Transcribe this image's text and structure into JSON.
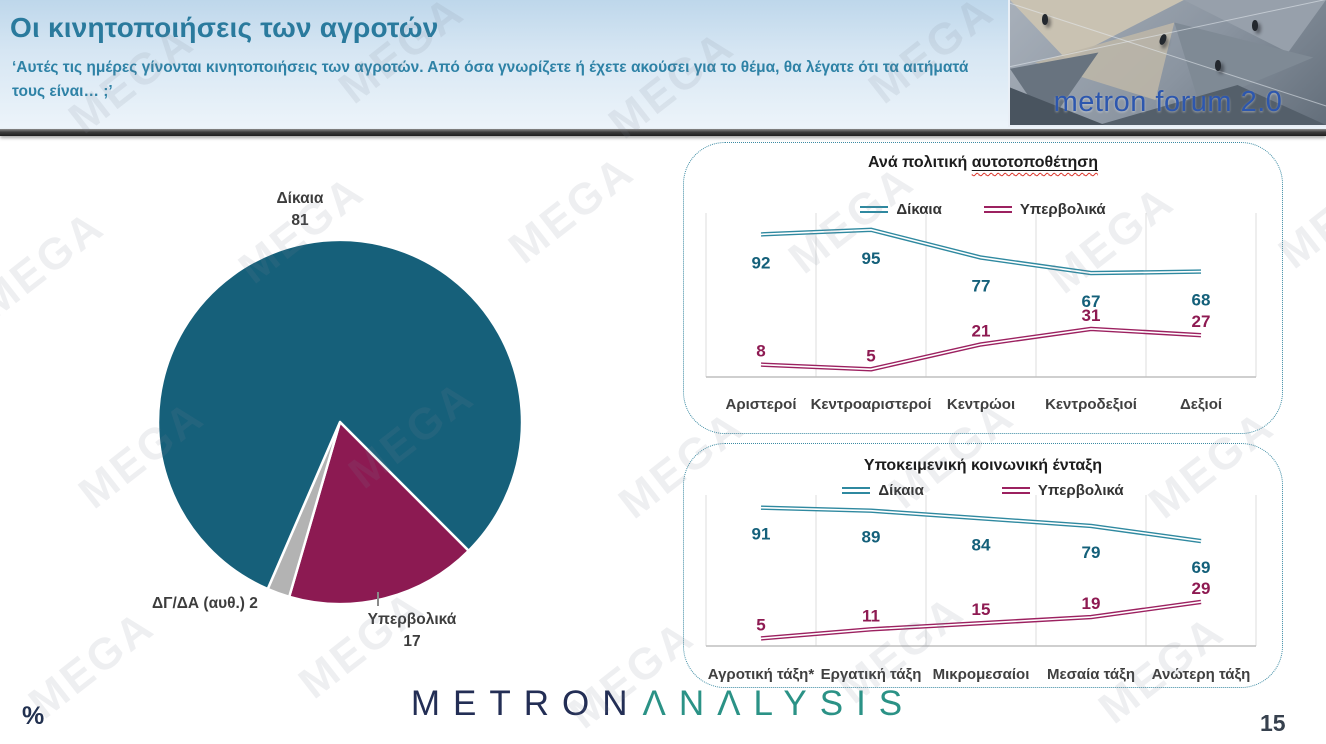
{
  "watermark": {
    "text": "MEGA"
  },
  "header": {
    "title": "Οι κινητοποιήσεις των αγροτών",
    "subtitle": "‘Αυτές τις ημέρες γίνονται κινητοποιήσεις των αγροτών. Από όσα γνωρίζετε ή έχετε ακούσει για το θέμα, θα λέγατε ότι τα αιτήματά τους είναι… ;’"
  },
  "brand_image": {
    "caption": "metron forum 2.0"
  },
  "panels": [
    {
      "title_prefix": "Ανά πολιτική ",
      "title_underlined": "αυτοτοποθέτηση"
    },
    {
      "title": "Υποκειμενική κοινωνική ένταξη"
    }
  ],
  "chart_data": [
    {
      "type": "pie",
      "labels": [
        "Δίκαια",
        "Υπερβολικά",
        "ΔΓ/ΔΑ (αυθ.)"
      ],
      "values": [
        81,
        17,
        2
      ],
      "colors": [
        "#16607a",
        "#8c1a52",
        "#b3b3b3"
      ],
      "start_angle_deg": 135,
      "notes": "gray ΔΓ/ΔΑ sliver sits between the Υπερβολικά wedge and Δίκαια at bottom-left"
    },
    {
      "type": "line",
      "title": "Ανά πολιτική αυτοτοποθέτηση",
      "categories": [
        "Αριστεροί",
        "Κεντροαριστεροί",
        "Κεντρώοι",
        "Κεντροδεξιοί",
        "Δεξιοί"
      ],
      "series": [
        {
          "name": "Δίκαια",
          "values": [
            92,
            95,
            77,
            67,
            68
          ],
          "color": "#2f89a0",
          "label_color": "#14607a"
        },
        {
          "name": "Υπερβολικά",
          "values": [
            8,
            5,
            21,
            31,
            27
          ],
          "color": "#9c2160",
          "label_color": "#8e1a52"
        }
      ],
      "ylim": [
        0,
        100
      ],
      "grid": "vertical",
      "legend_position": "top-center"
    },
    {
      "type": "line",
      "title": "Υποκειμενική κοινωνική ένταξη",
      "categories": [
        "Αγροτική τάξη*",
        "Εργατική τάξη",
        "Μικρομεσαίοι",
        "Μεσαία τάξη",
        "Ανώτερη τάξη"
      ],
      "series": [
        {
          "name": "Δίκαια",
          "values": [
            91,
            89,
            84,
            79,
            69
          ],
          "color": "#2f89a0",
          "label_color": "#14607a"
        },
        {
          "name": "Υπερβολικά",
          "values": [
            5,
            11,
            15,
            19,
            29
          ],
          "color": "#9c2160",
          "label_color": "#8e1a52"
        }
      ],
      "ylim": [
        0,
        100
      ],
      "grid": "vertical",
      "legend_position": "top-center"
    }
  ],
  "footer": {
    "percent_symbol": "%",
    "logo_metron": "METRON",
    "logo_analysis": "ΛNΛLYSIS",
    "page_number": "15"
  }
}
